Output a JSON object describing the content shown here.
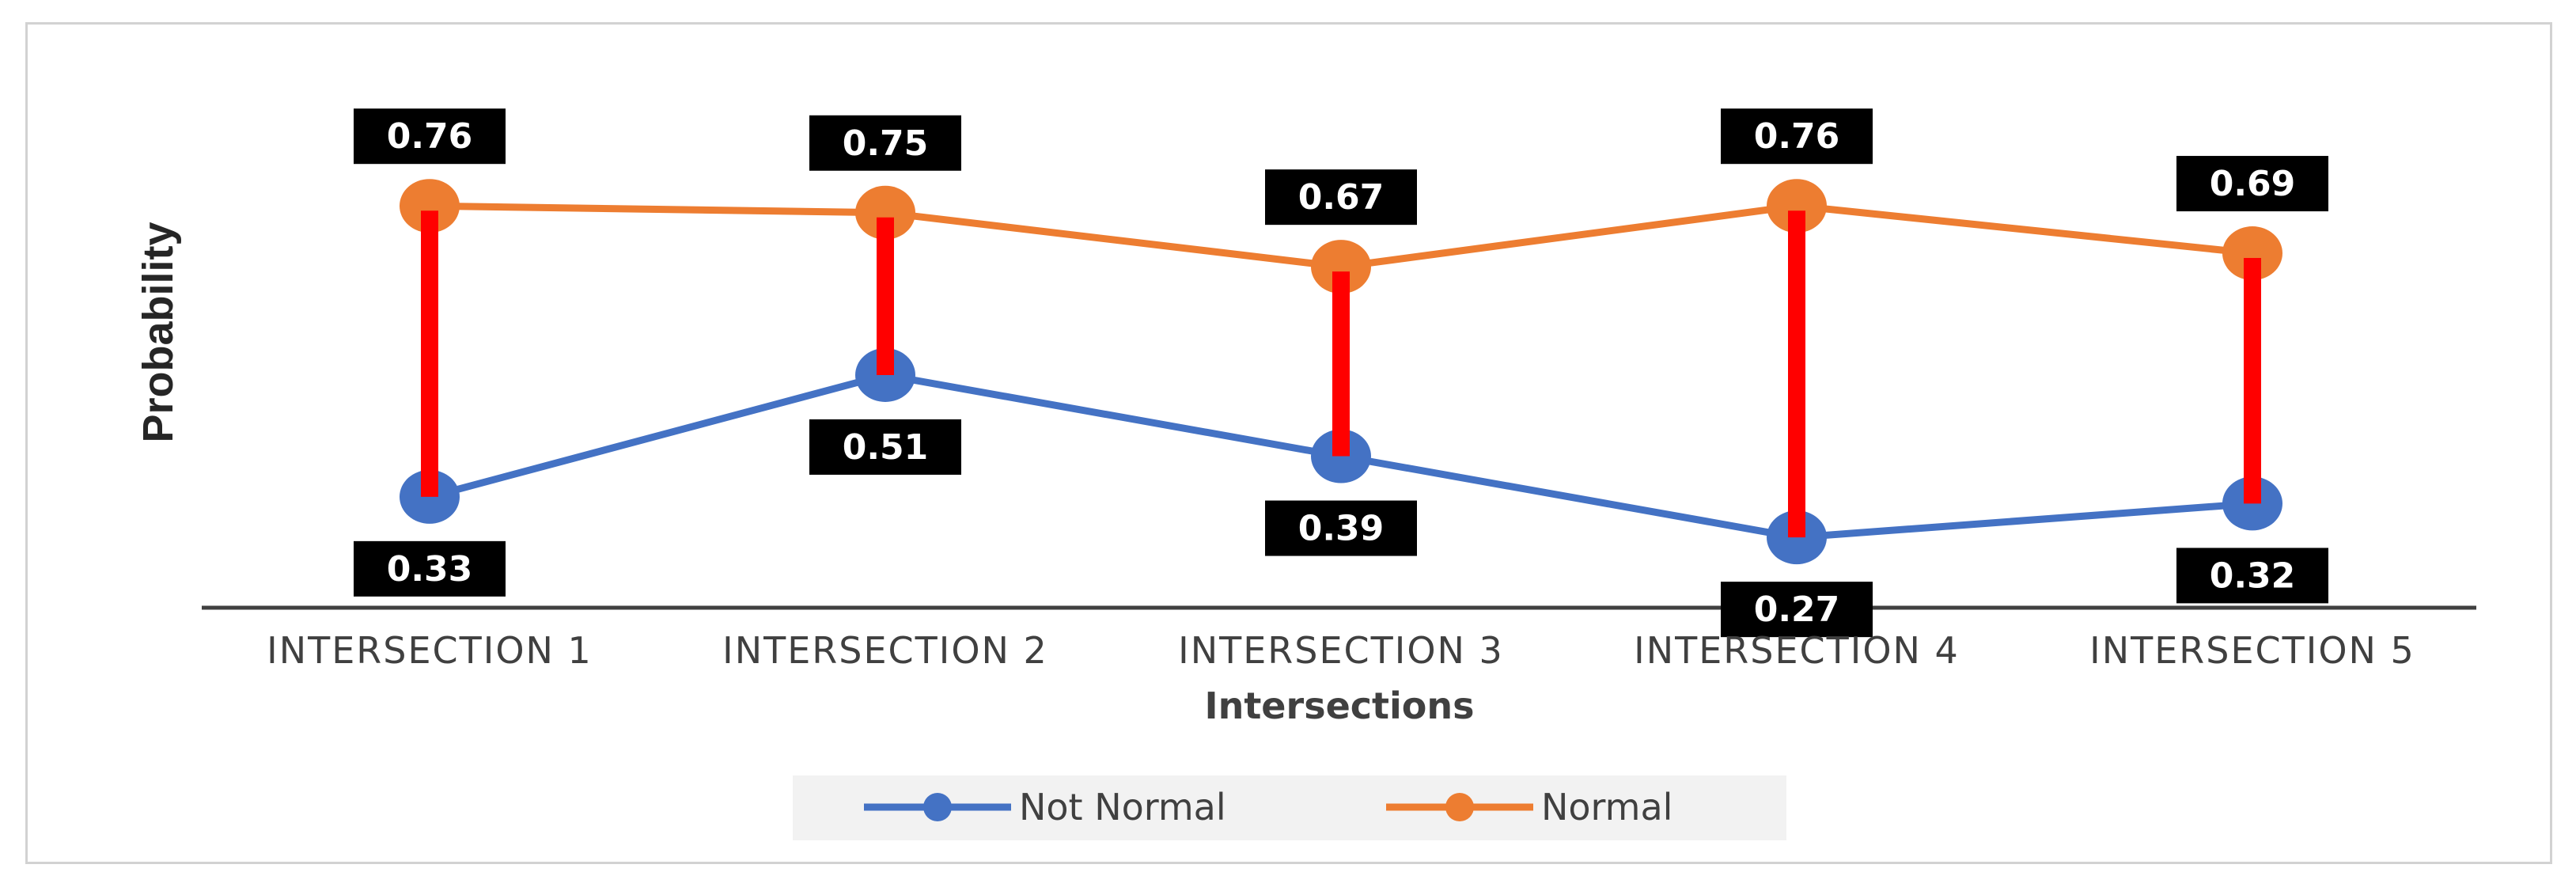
{
  "chart_data": {
    "type": "line",
    "categories": [
      "INTERSECTION 1",
      "INTERSECTION 2",
      "INTERSECTION 3",
      "INTERSECTION 4",
      "INTERSECTION 5"
    ],
    "series": [
      {
        "name": "Not Normal",
        "values": [
          0.33,
          0.51,
          0.39,
          0.27,
          0.32
        ],
        "labels": [
          "0.33",
          "0.51",
          "0.39",
          "0.27",
          "0.32"
        ],
        "color": "#4472C4"
      },
      {
        "name": "Normal",
        "values": [
          0.76,
          0.75,
          0.67,
          0.76,
          0.69
        ],
        "labels": [
          "0.76",
          "0.75",
          "0.67",
          "0.76",
          "0.69"
        ],
        "color": "#ED7D31"
      }
    ],
    "high_low_line_color": "#FF0000",
    "xlabel": "Intersections",
    "ylabel": "Probability",
    "legend_position": "bottom",
    "grid": false,
    "data_label_background": "#000000",
    "data_label_color": "#FFFFFF"
  }
}
